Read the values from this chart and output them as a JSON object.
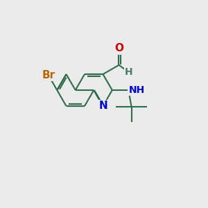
{
  "background_color": "#ebebeb",
  "bond_color": "#2d6b4a",
  "bond_width": 1.5,
  "atom_colors": {
    "Br": "#b8660a",
    "N": "#0000cc",
    "O": "#cc0000",
    "H_ald": "#4a7a6a",
    "H_nh": "#4a7a6a",
    "C": "#2d6b4a"
  },
  "figsize": [
    3.0,
    3.0
  ],
  "dpi": 100
}
